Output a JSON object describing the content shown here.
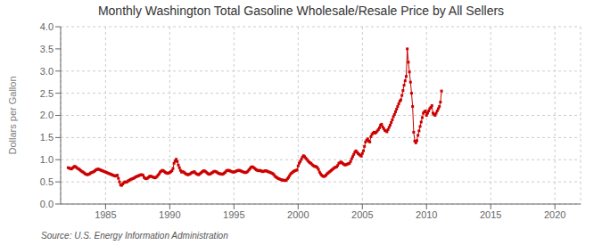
{
  "chart_data": {
    "type": "line",
    "title": "Monthly Washington Total Gasoline Wholesale/Resale Price by All Sellers",
    "y_label": "Dollars per Gallon",
    "annotation": "Source: U.S. Energy Information Administration",
    "xlim": [
      1981.5,
      2022
    ],
    "ylim": [
      0.0,
      4.0
    ],
    "xticks": [
      1985,
      1990,
      1995,
      2000,
      2005,
      2010,
      2015,
      2020
    ],
    "yticks": [
      {
        "value": 0.0,
        "label": "0.0"
      },
      {
        "value": 0.5,
        "label": "0.5"
      },
      {
        "value": 1.0,
        "label": "1.0"
      },
      {
        "value": 1.5,
        "label": "1.5"
      },
      {
        "value": 2.0,
        "label": "2.0"
      },
      {
        "value": 2.5,
        "label": "2.5"
      },
      {
        "value": 3.0,
        "label": "3.0"
      },
      {
        "value": 3.5,
        "label": "3.5"
      },
      {
        "value": 4.0,
        "label": "4.0"
      }
    ],
    "grid": true,
    "color": "#cc0000",
    "marker": "square",
    "line_style": "solid",
    "x": [
      1982.083,
      1982.167,
      1982.25,
      1982.333,
      1982.417,
      1982.5,
      1982.583,
      1982.667,
      1982.75,
      1982.833,
      1982.917,
      1983.0,
      1983.083,
      1983.167,
      1983.25,
      1983.333,
      1983.417,
      1983.5,
      1983.583,
      1983.667,
      1983.75,
      1983.833,
      1983.917,
      1984.0,
      1984.083,
      1984.167,
      1984.25,
      1984.333,
      1984.417,
      1984.5,
      1984.583,
      1984.667,
      1984.75,
      1984.833,
      1984.917,
      1985.0,
      1985.083,
      1985.167,
      1985.25,
      1985.333,
      1985.417,
      1985.5,
      1985.583,
      1985.667,
      1985.75,
      1985.833,
      1985.917,
      1986.0,
      1986.083,
      1986.167,
      1986.25,
      1986.333,
      1986.417,
      1986.5,
      1986.583,
      1986.667,
      1986.75,
      1986.833,
      1986.917,
      1987.0,
      1987.083,
      1987.167,
      1987.25,
      1987.333,
      1987.417,
      1987.5,
      1987.583,
      1987.667,
      1987.75,
      1987.833,
      1987.917,
      1988.0,
      1988.083,
      1988.167,
      1988.25,
      1988.333,
      1988.417,
      1988.5,
      1988.583,
      1988.667,
      1988.75,
      1988.833,
      1988.917,
      1989.0,
      1989.083,
      1989.167,
      1989.25,
      1989.333,
      1989.417,
      1989.5,
      1989.583,
      1989.667,
      1989.75,
      1989.833,
      1989.917,
      1990.0,
      1990.083,
      1990.167,
      1990.25,
      1990.333,
      1990.417,
      1990.5,
      1990.583,
      1990.667,
      1990.75,
      1990.833,
      1990.917,
      1991.0,
      1991.083,
      1991.167,
      1991.25,
      1991.333,
      1991.417,
      1991.5,
      1991.583,
      1991.667,
      1991.75,
      1991.833,
      1991.917,
      1992.0,
      1992.083,
      1992.167,
      1992.25,
      1992.333,
      1992.417,
      1992.5,
      1992.583,
      1992.667,
      1992.75,
      1992.833,
      1992.917,
      1993.0,
      1993.083,
      1993.167,
      1993.25,
      1993.333,
      1993.417,
      1993.5,
      1993.583,
      1993.667,
      1993.75,
      1993.833,
      1993.917,
      1994.0,
      1994.083,
      1994.167,
      1994.25,
      1994.333,
      1994.417,
      1994.5,
      1994.583,
      1994.667,
      1994.75,
      1994.833,
      1994.917,
      1995.0,
      1995.083,
      1995.167,
      1995.25,
      1995.333,
      1995.417,
      1995.5,
      1995.583,
      1995.667,
      1995.75,
      1995.833,
      1995.917,
      1996.0,
      1996.083,
      1996.167,
      1996.25,
      1996.333,
      1996.417,
      1996.5,
      1996.583,
      1996.667,
      1996.75,
      1996.833,
      1996.917,
      1997.0,
      1997.083,
      1997.167,
      1997.25,
      1997.333,
      1997.417,
      1997.5,
      1997.583,
      1997.667,
      1997.75,
      1997.833,
      1997.917,
      1998.0,
      1998.083,
      1998.167,
      1998.25,
      1998.333,
      1998.417,
      1998.5,
      1998.583,
      1998.667,
      1998.75,
      1998.833,
      1998.917,
      1999.0,
      1999.083,
      1999.167,
      1999.25,
      1999.333,
      1999.417,
      1999.5,
      1999.583,
      1999.667,
      1999.75,
      1999.833,
      1999.917,
      2000.0,
      2000.083,
      2000.167,
      2000.25,
      2000.333,
      2000.417,
      2000.5,
      2000.583,
      2000.667,
      2000.75,
      2000.833,
      2000.917,
      2001.0,
      2001.083,
      2001.167,
      2001.25,
      2001.333,
      2001.417,
      2001.5,
      2001.583,
      2001.667,
      2001.75,
      2001.833,
      2001.917,
      2002.0,
      2002.083,
      2002.167,
      2002.25,
      2002.333,
      2002.417,
      2002.5,
      2002.583,
      2002.667,
      2002.75,
      2002.833,
      2002.917,
      2003.0,
      2003.083,
      2003.167,
      2003.25,
      2003.333,
      2003.417,
      2003.5,
      2003.583,
      2003.667,
      2003.75,
      2003.833,
      2003.917,
      2004.0,
      2004.083,
      2004.167,
      2004.25,
      2004.333,
      2004.417,
      2004.5,
      2004.583,
      2004.667,
      2004.75,
      2004.833,
      2004.917,
      2005.0,
      2005.083,
      2005.167,
      2005.25,
      2005.333,
      2005.417,
      2005.5,
      2005.583,
      2005.667,
      2005.75,
      2005.833,
      2005.917,
      2006.0,
      2006.083,
      2006.167,
      2006.25,
      2006.333,
      2006.417,
      2006.5,
      2006.583,
      2006.667,
      2006.75,
      2006.833,
      2006.917,
      2007.0,
      2007.083,
      2007.167,
      2007.25,
      2007.333,
      2007.417,
      2007.5,
      2007.583,
      2007.667,
      2007.75,
      2007.833,
      2007.917,
      2008.0,
      2008.083,
      2008.167,
      2008.25,
      2008.333,
      2008.417,
      2008.5,
      2008.583,
      2008.667,
      2008.75,
      2008.833,
      2008.917,
      2009.0,
      2009.083,
      2009.167,
      2009.25,
      2009.333,
      2009.417,
      2009.5,
      2009.583,
      2009.667,
      2009.75,
      2009.833,
      2009.917,
      2010.0,
      2010.083,
      2010.167,
      2010.25,
      2010.333,
      2010.417,
      2010.5,
      2010.583,
      2010.667,
      2010.75,
      2010.833,
      2010.917,
      2011.0,
      2011.083,
      2011.167
    ],
    "values": [
      0.82,
      0.81,
      0.8,
      0.79,
      0.81,
      0.83,
      0.85,
      0.84,
      0.82,
      0.8,
      0.79,
      0.77,
      0.75,
      0.73,
      0.72,
      0.7,
      0.68,
      0.67,
      0.66,
      0.67,
      0.68,
      0.7,
      0.71,
      0.72,
      0.73,
      0.75,
      0.77,
      0.78,
      0.79,
      0.78,
      0.77,
      0.76,
      0.75,
      0.74,
      0.73,
      0.72,
      0.71,
      0.7,
      0.69,
      0.68,
      0.67,
      0.66,
      0.65,
      0.64,
      0.63,
      0.64,
      0.65,
      0.58,
      0.5,
      0.43,
      0.42,
      0.45,
      0.48,
      0.5,
      0.49,
      0.5,
      0.52,
      0.53,
      0.55,
      0.56,
      0.57,
      0.58,
      0.59,
      0.61,
      0.62,
      0.63,
      0.64,
      0.65,
      0.66,
      0.66,
      0.65,
      0.6,
      0.58,
      0.57,
      0.58,
      0.6,
      0.62,
      0.63,
      0.62,
      0.61,
      0.6,
      0.59,
      0.6,
      0.62,
      0.65,
      0.68,
      0.72,
      0.74,
      0.76,
      0.75,
      0.73,
      0.71,
      0.7,
      0.69,
      0.7,
      0.71,
      0.73,
      0.75,
      0.8,
      0.92,
      0.97,
      1.01,
      0.96,
      0.88,
      0.82,
      0.76,
      0.72,
      0.73,
      0.72,
      0.7,
      0.68,
      0.67,
      0.66,
      0.67,
      0.68,
      0.7,
      0.71,
      0.72,
      0.73,
      0.7,
      0.68,
      0.67,
      0.66,
      0.68,
      0.7,
      0.72,
      0.74,
      0.75,
      0.74,
      0.72,
      0.7,
      0.68,
      0.67,
      0.68,
      0.7,
      0.71,
      0.73,
      0.74,
      0.73,
      0.72,
      0.7,
      0.69,
      0.68,
      0.68,
      0.67,
      0.68,
      0.7,
      0.72,
      0.75,
      0.76,
      0.76,
      0.75,
      0.74,
      0.73,
      0.72,
      0.72,
      0.73,
      0.74,
      0.75,
      0.76,
      0.76,
      0.75,
      0.74,
      0.73,
      0.72,
      0.71,
      0.71,
      0.72,
      0.74,
      0.77,
      0.8,
      0.83,
      0.84,
      0.83,
      0.81,
      0.79,
      0.77,
      0.76,
      0.75,
      0.76,
      0.75,
      0.74,
      0.73,
      0.74,
      0.75,
      0.75,
      0.74,
      0.73,
      0.72,
      0.71,
      0.7,
      0.69,
      0.67,
      0.64,
      0.61,
      0.6,
      0.58,
      0.57,
      0.56,
      0.55,
      0.54,
      0.54,
      0.53,
      0.53,
      0.54,
      0.57,
      0.6,
      0.64,
      0.68,
      0.7,
      0.72,
      0.74,
      0.75,
      0.76,
      0.77,
      0.86,
      0.92,
      0.96,
      1.01,
      1.06,
      1.09,
      1.07,
      1.04,
      1.01,
      0.98,
      0.95,
      0.93,
      0.92,
      0.89,
      0.87,
      0.85,
      0.85,
      0.84,
      0.82,
      0.78,
      0.72,
      0.68,
      0.65,
      0.63,
      0.62,
      0.63,
      0.65,
      0.68,
      0.7,
      0.72,
      0.74,
      0.76,
      0.78,
      0.8,
      0.82,
      0.83,
      0.84,
      0.87,
      0.92,
      0.93,
      0.95,
      0.93,
      0.91,
      0.89,
      0.88,
      0.89,
      0.9,
      0.91,
      0.92,
      0.96,
      1.02,
      1.07,
      1.12,
      1.17,
      1.2,
      1.17,
      1.14,
      1.12,
      1.1,
      1.08,
      1.14,
      1.2,
      1.3,
      1.4,
      1.44,
      1.47,
      1.42,
      1.4,
      1.52,
      1.57,
      1.6,
      1.62,
      1.6,
      1.62,
      1.65,
      1.68,
      1.72,
      1.78,
      1.8,
      1.74,
      1.7,
      1.66,
      1.65,
      1.63,
      1.68,
      1.73,
      1.78,
      1.84,
      1.9,
      1.97,
      2.02,
      2.08,
      2.14,
      2.2,
      2.26,
      2.32,
      2.35,
      2.45,
      2.56,
      2.68,
      2.78,
      2.88,
      3.5,
      3.2,
      2.98,
      2.75,
      2.5,
      2.2,
      1.62,
      1.42,
      1.38,
      1.43,
      1.55,
      1.65,
      1.75,
      1.85,
      1.95,
      2.05,
      2.08,
      2.1,
      2.0,
      2.05,
      2.1,
      2.15,
      2.18,
      2.22,
      2.05,
      2.02,
      2.0,
      2.05,
      2.1,
      2.15,
      2.2,
      2.3,
      2.55
    ]
  }
}
